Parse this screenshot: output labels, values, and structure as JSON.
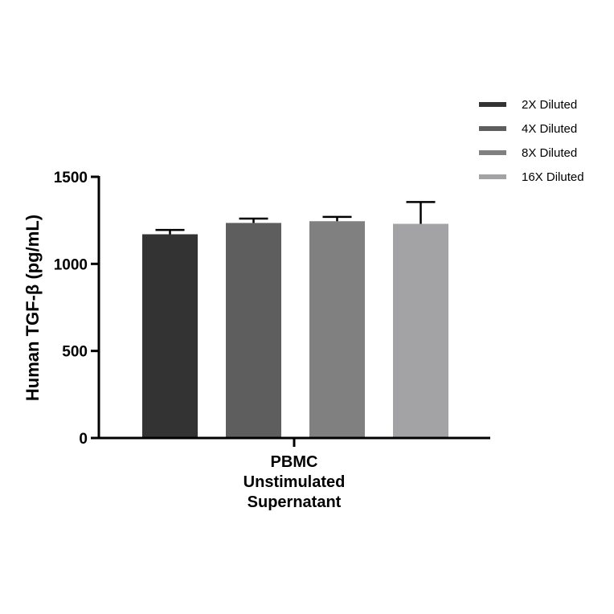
{
  "chart_data": {
    "type": "bar",
    "title": "",
    "xlabel": "",
    "ylabel": "Human TGF-β (pg/mL)",
    "ylim": [
      0,
      1500
    ],
    "yticks": [
      "0",
      "500",
      "1000",
      "1500"
    ],
    "grid": false,
    "legend_position": "top-right",
    "categories": [
      [
        "PBMC",
        "Unstimulated",
        "Supernatant"
      ]
    ],
    "series": [
      {
        "name": "2X Diluted",
        "color": "#333333",
        "values": [
          1170
        ],
        "error": [
          25
        ]
      },
      {
        "name": "4X Diluted",
        "color": "#5e5e5e",
        "values": [
          1235
        ],
        "error": [
          25
        ]
      },
      {
        "name": "8X Diluted",
        "color": "#808080",
        "values": [
          1245
        ],
        "error": [
          25
        ]
      },
      {
        "name": "16X Diluted",
        "color": "#a3a3a6",
        "values": [
          1230
        ],
        "error": [
          125
        ]
      }
    ]
  }
}
